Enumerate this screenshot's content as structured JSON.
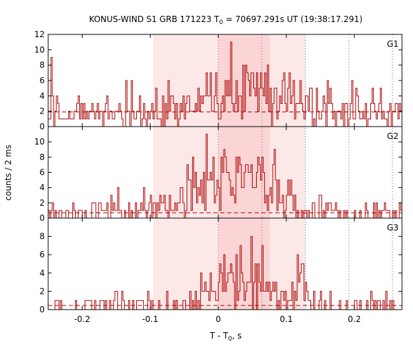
{
  "title": {
    "main": "KONUS-WIND S1 GRB 171223 T",
    "sub": "0",
    "rest": " = 70697.291s UT (19:38:17.291)"
  },
  "ylabel": "counts / 2 ms",
  "xlabel": {
    "main": "T - T",
    "sub": "0",
    "rest": ", s"
  },
  "chart_data": {
    "type": "line",
    "style": "step histogram, three stacked panels sharing the x axis",
    "bin_width_s": 0.002,
    "x_range": [
      -0.25,
      0.27
    ],
    "x_ticks": [
      -0.2,
      -0.1,
      0,
      0.1,
      0.2
    ],
    "x_tick_labels": [
      "-0.2",
      "-0.1",
      "0",
      "0.1",
      "0.2"
    ],
    "shaded_intervals": [
      {
        "from": -0.096,
        "to": 0.128,
        "color": "#fde8e8"
      },
      {
        "from": 0.0,
        "to": 0.076,
        "color": "#fbd5d5"
      }
    ],
    "vertical_dotted_lines": [
      0.0,
      0.064,
      0.128,
      0.192,
      0.256
    ],
    "colors": {
      "histogram": "#aa0000",
      "background_level": "#aa0000",
      "dotted": "#666666"
    },
    "panels": [
      {
        "label": "G1",
        "ylim": [
          0,
          12
        ],
        "y_ticks": [
          0,
          2,
          4,
          6,
          8,
          10,
          12
        ],
        "background_level": 1.9,
        "peak_profile": [
          {
            "center": 0.035,
            "width": 0.06,
            "amp": 3.0
          }
        ],
        "noise_max": 3
      },
      {
        "label": "G2",
        "ylim": [
          0,
          12
        ],
        "y_ticks": [
          0,
          2,
          4,
          6,
          8,
          10
        ],
        "background_level": 0.7,
        "peak_profile": [
          {
            "center": 0.03,
            "width": 0.055,
            "amp": 5.0
          }
        ],
        "noise_max": 3
      },
      {
        "label": "G3",
        "ylim": [
          0,
          10
        ],
        "y_ticks": [
          0,
          2,
          4,
          6,
          8
        ],
        "background_level": 0.45,
        "peak_profile": [
          {
            "center": 0.012,
            "width": 0.03,
            "amp": 2.5
          },
          {
            "center": 0.06,
            "width": 0.03,
            "amp": 1.5
          },
          {
            "center": 0.12,
            "width": 0.008,
            "amp": 4.0
          }
        ],
        "noise_max": 2
      }
    ]
  }
}
